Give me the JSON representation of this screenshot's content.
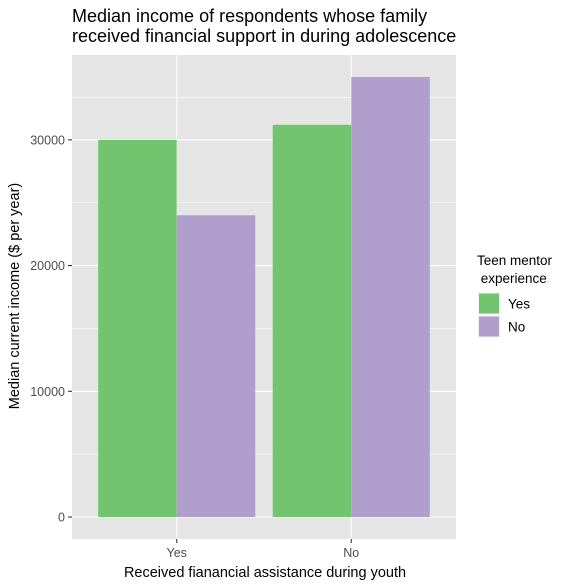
{
  "chart_data": {
    "type": "bar",
    "title_lines": [
      "Median income of respondents whose family",
      "received financial support in during adolescence"
    ],
    "xlabel": "Received fianancial assistance during youth",
    "ylabel": "Median current income ($ per year)",
    "categories": [
      "Yes",
      "No"
    ],
    "series": [
      {
        "name": "Yes",
        "color": "#73c46e",
        "values": [
          30000,
          31200
        ]
      },
      {
        "name": "No",
        "color": "#b09fcd",
        "values": [
          24000,
          35000
        ]
      }
    ],
    "y_ticks": [
      0,
      10000,
      20000,
      30000
    ],
    "y_tick_labels": [
      "0",
      "10000",
      "20000",
      "30000"
    ],
    "ylim": [
      -1750,
      36750
    ],
    "legend": {
      "title_lines": [
        "Teen mentor",
        " experience"
      ],
      "placement": "right"
    },
    "grid": true,
    "panel_background": "#e5e5e5",
    "grid_color": "#ffffff"
  }
}
